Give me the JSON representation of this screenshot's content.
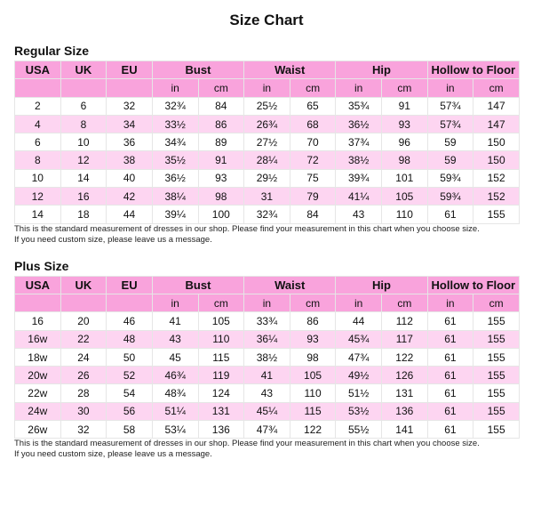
{
  "title": "Size Chart",
  "sections": [
    {
      "heading": "Regular Size",
      "columns": [
        "USA",
        "UK",
        "EU",
        "Bust",
        "Waist",
        "Hip",
        "Hollow to Floor"
      ],
      "subcolumns": [
        "in",
        "cm",
        "in",
        "cm",
        "in",
        "cm",
        "in",
        "cm"
      ],
      "rows": [
        [
          "2",
          "6",
          "32",
          "32¾",
          "84",
          "25½",
          "65",
          "35¾",
          "91",
          "57¾",
          "147"
        ],
        [
          "4",
          "8",
          "34",
          "33½",
          "86",
          "26¾",
          "68",
          "36½",
          "93",
          "57¾",
          "147"
        ],
        [
          "6",
          "10",
          "36",
          "34¾",
          "89",
          "27½",
          "70",
          "37¾",
          "96",
          "59",
          "150"
        ],
        [
          "8",
          "12",
          "38",
          "35½",
          "91",
          "28¼",
          "72",
          "38½",
          "98",
          "59",
          "150"
        ],
        [
          "10",
          "14",
          "40",
          "36½",
          "93",
          "29½",
          "75",
          "39¾",
          "101",
          "59¾",
          "152"
        ],
        [
          "12",
          "16",
          "42",
          "38¼",
          "98",
          "31",
          "79",
          "41¼",
          "105",
          "59¾",
          "152"
        ],
        [
          "14",
          "18",
          "44",
          "39¼",
          "100",
          "32¾",
          "84",
          "43",
          "110",
          "61",
          "155"
        ]
      ],
      "notes": [
        "This is the standard measurement of dresses in our shop. Please find your measurement in this chart when you choose size.",
        "If you need custom size, please leave us a message."
      ]
    },
    {
      "heading": "Plus Size",
      "columns": [
        "USA",
        "UK",
        "EU",
        "Bust",
        "Waist",
        "Hip",
        "Hollow to Floor"
      ],
      "subcolumns": [
        "in",
        "cm",
        "in",
        "cm",
        "in",
        "cm",
        "in",
        "cm"
      ],
      "rows": [
        [
          "16",
          "20",
          "46",
          "41",
          "105",
          "33¾",
          "86",
          "44",
          "112",
          "61",
          "155"
        ],
        [
          "16w",
          "22",
          "48",
          "43",
          "110",
          "36¼",
          "93",
          "45¾",
          "117",
          "61",
          "155"
        ],
        [
          "18w",
          "24",
          "50",
          "45",
          "115",
          "38½",
          "98",
          "47¾",
          "122",
          "61",
          "155"
        ],
        [
          "20w",
          "26",
          "52",
          "46¾",
          "119",
          "41",
          "105",
          "49½",
          "126",
          "61",
          "155"
        ],
        [
          "22w",
          "28",
          "54",
          "48¾",
          "124",
          "43",
          "110",
          "51½",
          "131",
          "61",
          "155"
        ],
        [
          "24w",
          "30",
          "56",
          "51¼",
          "131",
          "45¼",
          "115",
          "53½",
          "136",
          "61",
          "155"
        ],
        [
          "26w",
          "32",
          "58",
          "53¼",
          "136",
          "47¾",
          "122",
          "55½",
          "141",
          "61",
          "155"
        ]
      ],
      "notes": [
        "This is the standard measurement of dresses in our shop. Please find your measurement in this chart when you choose size.",
        "If you need custom size, please leave us a message."
      ]
    }
  ]
}
